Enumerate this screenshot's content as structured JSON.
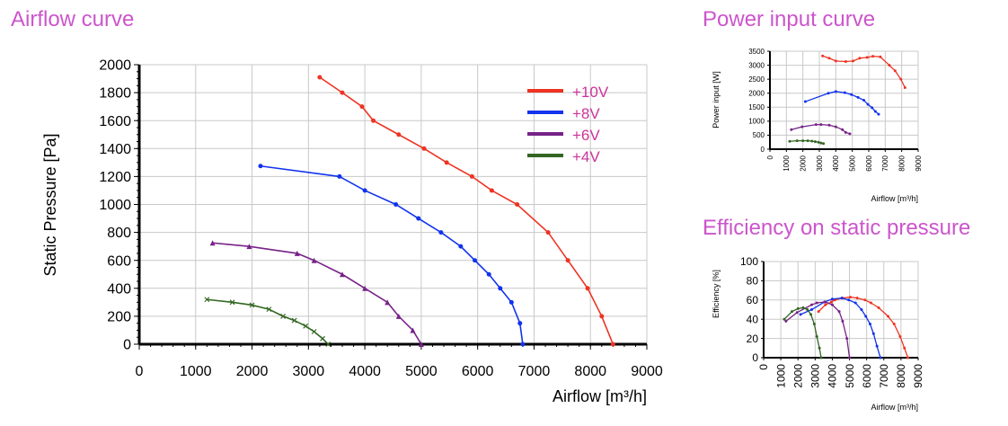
{
  "titles": {
    "airflow": "Airflow curve",
    "power": "Power input curve",
    "efficiency": "Efficiency on static pressure"
  },
  "colors": {
    "title": "#cc55cc",
    "grid": "#c8c8c8",
    "axis": "#000000",
    "legend_text": "#cc3399"
  },
  "chart_data": [
    {
      "type": "line",
      "title": "Airflow curve",
      "xlabel": "Airflow [m³/h]",
      "ylabel": "Static Pressure [Pa]",
      "xlim": [
        0,
        9000
      ],
      "ylim": [
        0,
        2000
      ],
      "xticks": [
        0,
        1000,
        2000,
        3000,
        4000,
        5000,
        6000,
        7000,
        8000,
        9000
      ],
      "yticks": [
        0,
        200,
        400,
        600,
        800,
        1000,
        1200,
        1400,
        1600,
        1800,
        2000
      ],
      "grid": true,
      "legend": "top-right",
      "series": [
        {
          "name": "+10V",
          "color": "#ee3322",
          "marker": "dot",
          "points": [
            [
              3200,
              1910
            ],
            [
              3600,
              1800
            ],
            [
              3950,
              1700
            ],
            [
              4150,
              1600
            ],
            [
              4600,
              1500
            ],
            [
              5050,
              1400
            ],
            [
              5450,
              1300
            ],
            [
              5900,
              1200
            ],
            [
              6250,
              1100
            ],
            [
              6700,
              1000
            ],
            [
              7250,
              800
            ],
            [
              7600,
              600
            ],
            [
              7950,
              400
            ],
            [
              8200,
              200
            ],
            [
              8400,
              0
            ]
          ]
        },
        {
          "name": "+8V",
          "color": "#1133ee",
          "marker": "dot",
          "points": [
            [
              2150,
              1275
            ],
            [
              3550,
              1200
            ],
            [
              4000,
              1100
            ],
            [
              4550,
              1000
            ],
            [
              4950,
              900
            ],
            [
              5350,
              800
            ],
            [
              5700,
              700
            ],
            [
              5950,
              600
            ],
            [
              6200,
              500
            ],
            [
              6400,
              400
            ],
            [
              6600,
              300
            ],
            [
              6750,
              150
            ],
            [
              6800,
              0
            ]
          ]
        },
        {
          "name": "+6V",
          "color": "#772288",
          "marker": "triangle",
          "points": [
            [
              1300,
              725
            ],
            [
              1950,
              700
            ],
            [
              2800,
              650
            ],
            [
              3100,
              600
            ],
            [
              3600,
              500
            ],
            [
              4000,
              400
            ],
            [
              4400,
              300
            ],
            [
              4600,
              200
            ],
            [
              4850,
              100
            ],
            [
              5000,
              0
            ]
          ]
        },
        {
          "name": "+4V",
          "color": "#336622",
          "marker": "cross",
          "points": [
            [
              1200,
              320
            ],
            [
              1650,
              300
            ],
            [
              2000,
              280
            ],
            [
              2300,
              250
            ],
            [
              2550,
              200
            ],
            [
              2750,
              170
            ],
            [
              2950,
              130
            ],
            [
              3100,
              90
            ],
            [
              3250,
              40
            ],
            [
              3350,
              0
            ]
          ]
        }
      ]
    },
    {
      "type": "line",
      "title": "Power input curve",
      "xlabel": "Airflow [m³/h]",
      "ylabel": "Power input [W]",
      "xlim": [
        0,
        9000
      ],
      "ylim": [
        0,
        3500
      ],
      "xticks": [
        0,
        1000,
        2000,
        3000,
        4000,
        5000,
        6000,
        7000,
        8000,
        9000
      ],
      "yticks": [
        0,
        500,
        1000,
        1500,
        2000,
        2500,
        3000,
        3500
      ],
      "grid": true,
      "series": [
        {
          "color": "#ee3322",
          "points": [
            [
              3200,
              3330
            ],
            [
              3600,
              3250
            ],
            [
              4000,
              3150
            ],
            [
              4600,
              3130
            ],
            [
              5050,
              3150
            ],
            [
              5450,
              3250
            ],
            [
              5900,
              3280
            ],
            [
              6250,
              3320
            ],
            [
              6700,
              3300
            ],
            [
              7250,
              3000
            ],
            [
              7600,
              2800
            ],
            [
              7950,
              2500
            ],
            [
              8200,
              2200
            ]
          ]
        },
        {
          "color": "#1133ee",
          "points": [
            [
              2150,
              1700
            ],
            [
              3550,
              2000
            ],
            [
              4000,
              2060
            ],
            [
              4550,
              2020
            ],
            [
              4950,
              1950
            ],
            [
              5350,
              1850
            ],
            [
              5700,
              1750
            ],
            [
              5950,
              1600
            ],
            [
              6200,
              1480
            ],
            [
              6400,
              1350
            ],
            [
              6600,
              1250
            ]
          ]
        },
        {
          "color": "#772288",
          "points": [
            [
              1300,
              700
            ],
            [
              1950,
              800
            ],
            [
              2800,
              880
            ],
            [
              3100,
              880
            ],
            [
              3600,
              860
            ],
            [
              4000,
              800
            ],
            [
              4400,
              700
            ],
            [
              4600,
              600
            ],
            [
              4850,
              550
            ]
          ]
        },
        {
          "color": "#336622",
          "points": [
            [
              1200,
              280
            ],
            [
              1650,
              300
            ],
            [
              2000,
              300
            ],
            [
              2300,
              300
            ],
            [
              2550,
              290
            ],
            [
              2750,
              270
            ],
            [
              2950,
              250
            ],
            [
              3100,
              220
            ],
            [
              3250,
              200
            ]
          ]
        }
      ]
    },
    {
      "type": "line",
      "title": "Efficiency on static pressure",
      "xlabel": "Airflow [m³/h]",
      "ylabel": "Efficiency [%]",
      "xlim": [
        0,
        9000
      ],
      "ylim": [
        0,
        100
      ],
      "xticks": [
        0,
        1000,
        2000,
        3000,
        4000,
        5000,
        6000,
        7000,
        8000,
        9000
      ],
      "yticks": [
        0,
        20,
        40,
        60,
        80,
        100
      ],
      "grid": true,
      "series": [
        {
          "color": "#ee3322",
          "points": [
            [
              3200,
              48
            ],
            [
              3600,
              55
            ],
            [
              3950,
              58
            ],
            [
              4150,
              60
            ],
            [
              4600,
              62
            ],
            [
              5050,
              63
            ],
            [
              5450,
              62
            ],
            [
              5900,
              60
            ],
            [
              6250,
              57
            ],
            [
              6700,
              52
            ],
            [
              7250,
              43
            ],
            [
              7600,
              35
            ],
            [
              7950,
              22
            ],
            [
              8200,
              10
            ],
            [
              8400,
              0
            ]
          ]
        },
        {
          "color": "#1133ee",
          "points": [
            [
              2150,
              45
            ],
            [
              2800,
              50
            ],
            [
              3550,
              58
            ],
            [
              4000,
              61
            ],
            [
              4550,
              62
            ],
            [
              4950,
              60
            ],
            [
              5350,
              57
            ],
            [
              5700,
              50
            ],
            [
              5950,
              43
            ],
            [
              6200,
              35
            ],
            [
              6400,
              25
            ],
            [
              6600,
              12
            ],
            [
              6800,
              0
            ]
          ]
        },
        {
          "color": "#772288",
          "points": [
            [
              1300,
              38
            ],
            [
              1950,
              47
            ],
            [
              2800,
              55
            ],
            [
              3100,
              57
            ],
            [
              3600,
              58
            ],
            [
              4000,
              55
            ],
            [
              4400,
              48
            ],
            [
              4600,
              38
            ],
            [
              4850,
              20
            ],
            [
              5000,
              0
            ]
          ]
        },
        {
          "color": "#336622",
          "points": [
            [
              1200,
              40
            ],
            [
              1650,
              48
            ],
            [
              2000,
              51
            ],
            [
              2300,
              52
            ],
            [
              2550,
              50
            ],
            [
              2750,
              45
            ],
            [
              2950,
              35
            ],
            [
              3100,
              22
            ],
            [
              3250,
              10
            ],
            [
              3350,
              0
            ]
          ]
        }
      ]
    }
  ]
}
